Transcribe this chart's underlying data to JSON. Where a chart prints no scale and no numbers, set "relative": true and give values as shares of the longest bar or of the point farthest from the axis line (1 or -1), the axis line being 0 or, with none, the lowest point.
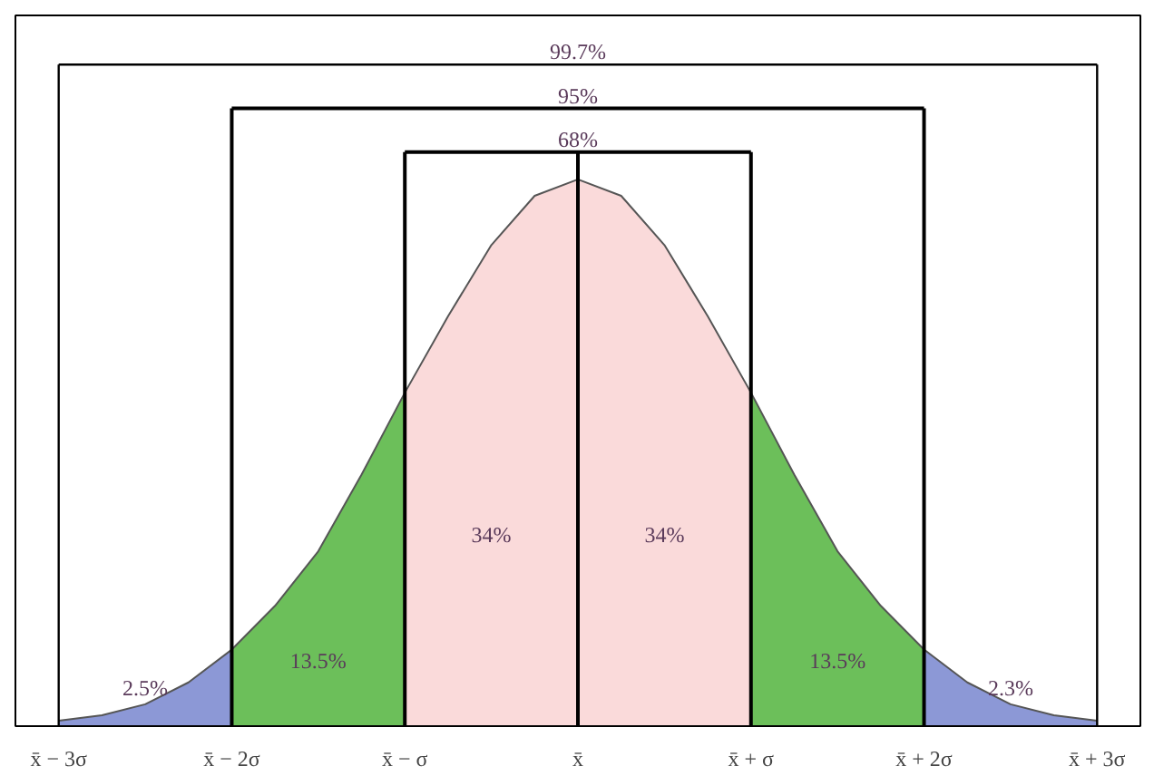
{
  "chart_data": {
    "type": "area",
    "relative": true,
    "grid": false,
    "tick_labels": "x",
    "xlim": [
      -3.25,
      3.25
    ],
    "xticks": [
      {
        "value": -3,
        "label": "x̄ − 3σ"
      },
      {
        "value": -2,
        "label": "x̄ − 2σ"
      },
      {
        "value": -1,
        "label": "x̄ − σ"
      },
      {
        "value": 0,
        "label": "x̄"
      },
      {
        "value": 1,
        "label": "x̄ + σ"
      },
      {
        "value": 2,
        "label": "x̄ + 2σ"
      },
      {
        "value": 3,
        "label": "x̄ + 3σ"
      }
    ],
    "series": [
      {
        "color": "#8c98d6",
        "x": [
          -3,
          -2.75,
          -2.5,
          -2.25,
          -2
        ],
        "values": [
          0.01,
          0.02,
          0.04,
          0.08,
          0.14
        ]
      },
      {
        "color": "#6cbf5a",
        "x": [
          -2,
          -1.75,
          -1.5,
          -1.25,
          -1
        ],
        "values": [
          0.14,
          0.22,
          0.32,
          0.46,
          0.61
        ]
      },
      {
        "color": "#fadada",
        "x": [
          -1,
          -0.75,
          -0.5,
          -0.25,
          0,
          0.25,
          0.5,
          0.75,
          1
        ],
        "values": [
          0.61,
          0.75,
          0.88,
          0.97,
          1,
          0.97,
          0.88,
          0.75,
          0.61
        ]
      },
      {
        "color": "#6cbf5a",
        "x": [
          1,
          1.25,
          1.5,
          1.75,
          2
        ],
        "values": [
          0.61,
          0.46,
          0.32,
          0.22,
          0.14
        ]
      },
      {
        "color": "#8c98d6",
        "x": [
          2,
          2.25,
          2.5,
          2.75,
          3
        ],
        "values": [
          0.14,
          0.08,
          0.04,
          0.02,
          0.01
        ]
      }
    ],
    "ref_lines": [
      {
        "axis": "x",
        "value": 0,
        "color": "#000000"
      },
      {
        "axis": "x",
        "value": -1,
        "color": "#000000"
      },
      {
        "axis": "x",
        "value": 1,
        "color": "#000000"
      },
      {
        "axis": "x",
        "value": -2,
        "color": "#000000"
      },
      {
        "axis": "x",
        "value": 2,
        "color": "#000000"
      },
      {
        "axis": "x",
        "value": -3,
        "color": "#000000"
      },
      {
        "axis": "x",
        "value": 3,
        "color": "#000000"
      }
    ],
    "annotations": [
      "68%",
      "95%",
      "99.7%",
      "2.5%",
      "13.5%",
      "34%",
      "34%",
      "13.5%",
      "2.3%"
    ]
  }
}
